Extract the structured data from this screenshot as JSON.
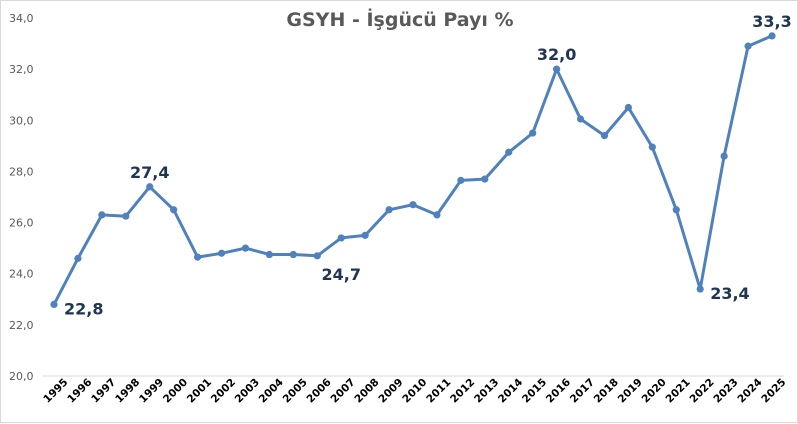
{
  "chart_data": {
    "type": "line",
    "title": "GSYH - İşgücü Payı %",
    "xlabel": "",
    "ylabel": "",
    "ylim": [
      20.0,
      34.0
    ],
    "yticks": [
      "20,0",
      "22,0",
      "24,0",
      "26,0",
      "28,0",
      "30,0",
      "32,0",
      "34,0"
    ],
    "grid": false,
    "legend": "none",
    "line_color": "#4f81bd",
    "label_color": "#203552",
    "categories": [
      "1995",
      "1996",
      "1997",
      "1998",
      "1999",
      "2000",
      "2001",
      "2002",
      "2003",
      "2004",
      "2005",
      "2006",
      "2007",
      "2008",
      "2009",
      "2010",
      "2011",
      "2012",
      "2013",
      "2014",
      "2015",
      "2016",
      "2017",
      "2018",
      "2019",
      "2020",
      "2021",
      "2022",
      "2023",
      "2024",
      "2025"
    ],
    "series": [
      {
        "name": "GSYH - İşgücü Payı %",
        "values": [
          22.8,
          24.6,
          26.3,
          26.25,
          27.4,
          26.5,
          24.65,
          24.8,
          25.0,
          24.75,
          24.75,
          24.7,
          25.4,
          25.5,
          26.5,
          26.7,
          26.3,
          27.65,
          27.7,
          28.75,
          29.5,
          32.0,
          30.05,
          29.4,
          30.5,
          28.95,
          26.5,
          23.4,
          28.6,
          32.9,
          33.3
        ]
      }
    ],
    "annotations": [
      {
        "category": "1995",
        "text": "22,8",
        "position": "right"
      },
      {
        "category": "1999",
        "text": "27,4",
        "position": "above"
      },
      {
        "category": "2006",
        "text": "24,7",
        "position": "below-right"
      },
      {
        "category": "2016",
        "text": "32,0",
        "position": "above"
      },
      {
        "category": "2022",
        "text": "23,4",
        "position": "right"
      },
      {
        "category": "2025",
        "text": "33,3",
        "position": "above"
      }
    ]
  }
}
